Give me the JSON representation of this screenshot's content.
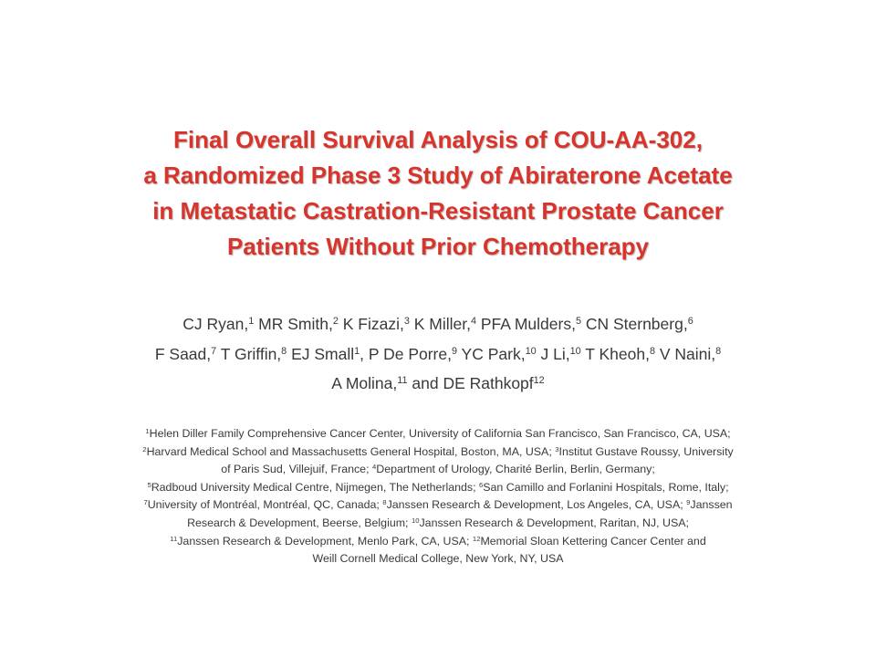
{
  "title": {
    "lines": [
      "Final Overall Survival Analysis of COU-AA-302,",
      "a Randomized Phase 3 Study of Abiraterone Acetate",
      "in Metastatic Castration-Resistant Prostate Cancer",
      "Patients Without Prior Chemotherapy"
    ]
  },
  "authors": {
    "lines": [
      [
        {
          "t": "CJ Ryan,"
        },
        {
          "s": "1"
        },
        {
          "t": " MR Smith,"
        },
        {
          "s": "2"
        },
        {
          "t": " K Fizazi,"
        },
        {
          "s": "3"
        },
        {
          "t": " K Miller,"
        },
        {
          "s": "4"
        },
        {
          "t": " PFA Mulders,"
        },
        {
          "s": "5"
        },
        {
          "t": " CN Sternberg,"
        },
        {
          "s": "6"
        }
      ],
      [
        {
          "t": "F Saad,"
        },
        {
          "s": "7"
        },
        {
          "t": " T Griffin,"
        },
        {
          "s": "8"
        },
        {
          "t": " EJ Small"
        },
        {
          "s": "1"
        },
        {
          "t": ", P De Porre,"
        },
        {
          "s": "9"
        },
        {
          "t": " YC Park,"
        },
        {
          "s": "10"
        },
        {
          "t": " J Li,"
        },
        {
          "s": "10"
        },
        {
          "t": " T Kheoh,"
        },
        {
          "s": "8"
        },
        {
          "t": " V Naini,"
        },
        {
          "s": "8"
        }
      ],
      [
        {
          "t": "A Molina,"
        },
        {
          "s": "11"
        },
        {
          "t": " and DE Rathkopf"
        },
        {
          "s": "12"
        }
      ]
    ]
  },
  "affiliations": {
    "lines": [
      [
        {
          "s": "1"
        },
        {
          "t": "Helen Diller Family Comprehensive Cancer Center, University of California San Francisco, San Francisco, CA, USA;"
        }
      ],
      [
        {
          "s": "2"
        },
        {
          "t": "Harvard Medical School and Massachusetts General Hospital, Boston, MA, USA; "
        },
        {
          "s": "3"
        },
        {
          "t": "Institut Gustave Roussy, University"
        }
      ],
      [
        {
          "t": "of Paris Sud, Villejuif, France; "
        },
        {
          "s": "4"
        },
        {
          "t": "Department of Urology, Charité Berlin, Berlin, Germany;"
        }
      ],
      [
        {
          "s": "5"
        },
        {
          "t": "Radboud University Medical Centre, Nijmegen, The Netherlands; "
        },
        {
          "s": "6"
        },
        {
          "t": "San Camillo and Forlanini Hospitals, Rome, Italy;"
        }
      ],
      [
        {
          "s": "7"
        },
        {
          "t": "University of Montréal, Montréal, QC, Canada; "
        },
        {
          "s": "8"
        },
        {
          "t": "Janssen Research & Development, Los Angeles, CA, USA; "
        },
        {
          "s": "9"
        },
        {
          "t": "Janssen"
        }
      ],
      [
        {
          "t": "Research & Development, Beerse, Belgium; "
        },
        {
          "s": "10"
        },
        {
          "t": "Janssen Research & Development, Raritan, NJ, USA;"
        }
      ],
      [
        {
          "s": "11"
        },
        {
          "t": "Janssen Research & Development, Menlo Park, CA, USA; "
        },
        {
          "s": "12"
        },
        {
          "t": "Memorial Sloan Kettering Cancer Center and"
        }
      ],
      [
        {
          "t": "Weill Cornell Medical College, New York, NY, USA"
        }
      ]
    ]
  }
}
